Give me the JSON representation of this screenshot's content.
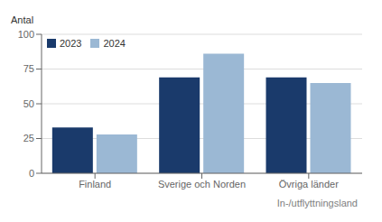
{
  "chart_data": {
    "type": "bar",
    "categories": [
      "Finland",
      "Sverige och Norden",
      "Övriga länder"
    ],
    "xlabel": "In-/utflyttningsland",
    "ylabel": "Antal",
    "series": [
      {
        "name": "2023",
        "color": "#1a3a6b",
        "values": [
          33,
          69,
          69
        ]
      },
      {
        "name": "2024",
        "color": "#9bb8d4",
        "values": [
          28,
          86,
          65
        ]
      }
    ],
    "ylim": [
      0,
      100
    ],
    "yticks": [
      0,
      25,
      50,
      75,
      100
    ],
    "grid": true,
    "legend": "upper left"
  }
}
